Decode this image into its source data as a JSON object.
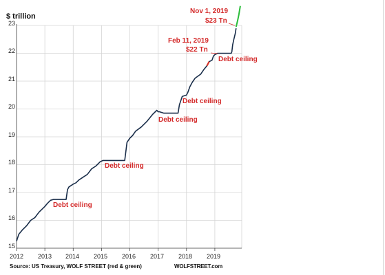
{
  "chart_data": {
    "type": "line",
    "ylabel": "$ trillion",
    "ylim": [
      15,
      23
    ],
    "yticks": [
      "15",
      "16",
      "17",
      "18",
      "19",
      "20",
      "21",
      "22",
      "23"
    ],
    "xlim": [
      2012,
      2019.95
    ],
    "xticks": [
      "2012",
      "2013",
      "2014",
      "2015",
      "2016",
      "2017",
      "2018",
      "2019"
    ],
    "series": [
      {
        "color": "#1a2e4a",
        "x": [
          2012.0,
          2012.08,
          2012.2,
          2012.35,
          2012.5,
          2012.65,
          2012.8,
          2012.9,
          2013.0,
          2013.1,
          2013.2,
          2013.3,
          2013.37,
          2013.5,
          2013.6,
          2013.75,
          2013.8,
          2013.85,
          2014.0,
          2014.1,
          2014.2,
          2014.35,
          2014.5,
          2014.65,
          2014.8,
          2014.95,
          2015.05,
          2015.2,
          2015.4,
          2015.6,
          2015.75,
          2015.82,
          2015.9,
          2016.0,
          2016.1,
          2016.2,
          2016.4,
          2016.6,
          2016.8,
          2016.95,
          2017.0,
          2017.05,
          2017.2,
          2017.4,
          2017.6,
          2017.7,
          2017.75,
          2017.85,
          2018.0,
          2018.05,
          2018.12,
          2018.2,
          2018.3,
          2018.5,
          2018.6,
          2018.72,
          2018.8,
          2018.9,
          2018.95,
          2019.0,
          2019.1,
          2019.15,
          2019.3,
          2019.45,
          2019.58,
          2019.6,
          2019.63,
          2019.67,
          2019.72,
          2019.75
        ],
        "y": [
          15.25,
          15.5,
          15.65,
          15.8,
          16.0,
          16.1,
          16.3,
          16.4,
          16.5,
          16.62,
          16.72,
          16.75,
          16.75,
          16.75,
          16.75,
          16.75,
          17.1,
          17.2,
          17.3,
          17.35,
          17.45,
          17.55,
          17.65,
          17.85,
          17.95,
          18.1,
          18.15,
          18.15,
          18.15,
          18.15,
          18.15,
          18.15,
          18.8,
          18.95,
          19.05,
          19.2,
          19.35,
          19.55,
          19.8,
          19.95,
          19.9,
          19.9,
          19.85,
          19.85,
          19.85,
          19.85,
          20.15,
          20.45,
          20.5,
          20.6,
          20.8,
          20.95,
          21.1,
          21.25,
          21.4,
          21.55,
          21.7,
          21.75,
          21.9,
          21.95,
          22.0,
          22.0,
          22.0,
          22.0,
          22.0,
          22.05,
          22.3,
          22.5,
          22.7,
          22.9
        ]
      },
      {
        "color": "#2bbd3a",
        "x": [
          2019.75,
          2019.8,
          2019.85,
          2019.9
        ],
        "y": [
          22.95,
          23.15,
          23.4,
          23.7
        ]
      }
    ],
    "highlight": {
      "color": "#d9362b",
      "x": [
        2018.72,
        2018.8
      ],
      "y": [
        21.55,
        21.7
      ]
    },
    "annotations": [
      {
        "text": "Debt ceiling"
      },
      {
        "text": "Debt ceiling"
      },
      {
        "text": "Debt ceiling"
      },
      {
        "text": "Debt ceiling"
      },
      {
        "text": "Debt ceiling"
      },
      {
        "text": "Feb 11, 2019"
      },
      {
        "text": "$22 Tn"
      },
      {
        "text": "Nov 1, 2019"
      },
      {
        "text": "$23 Tn"
      }
    ],
    "source": "Source: US Treasury, WOLF STREET (red & green)",
    "brand": "WOLFSTREET.com",
    "grid": true
  }
}
